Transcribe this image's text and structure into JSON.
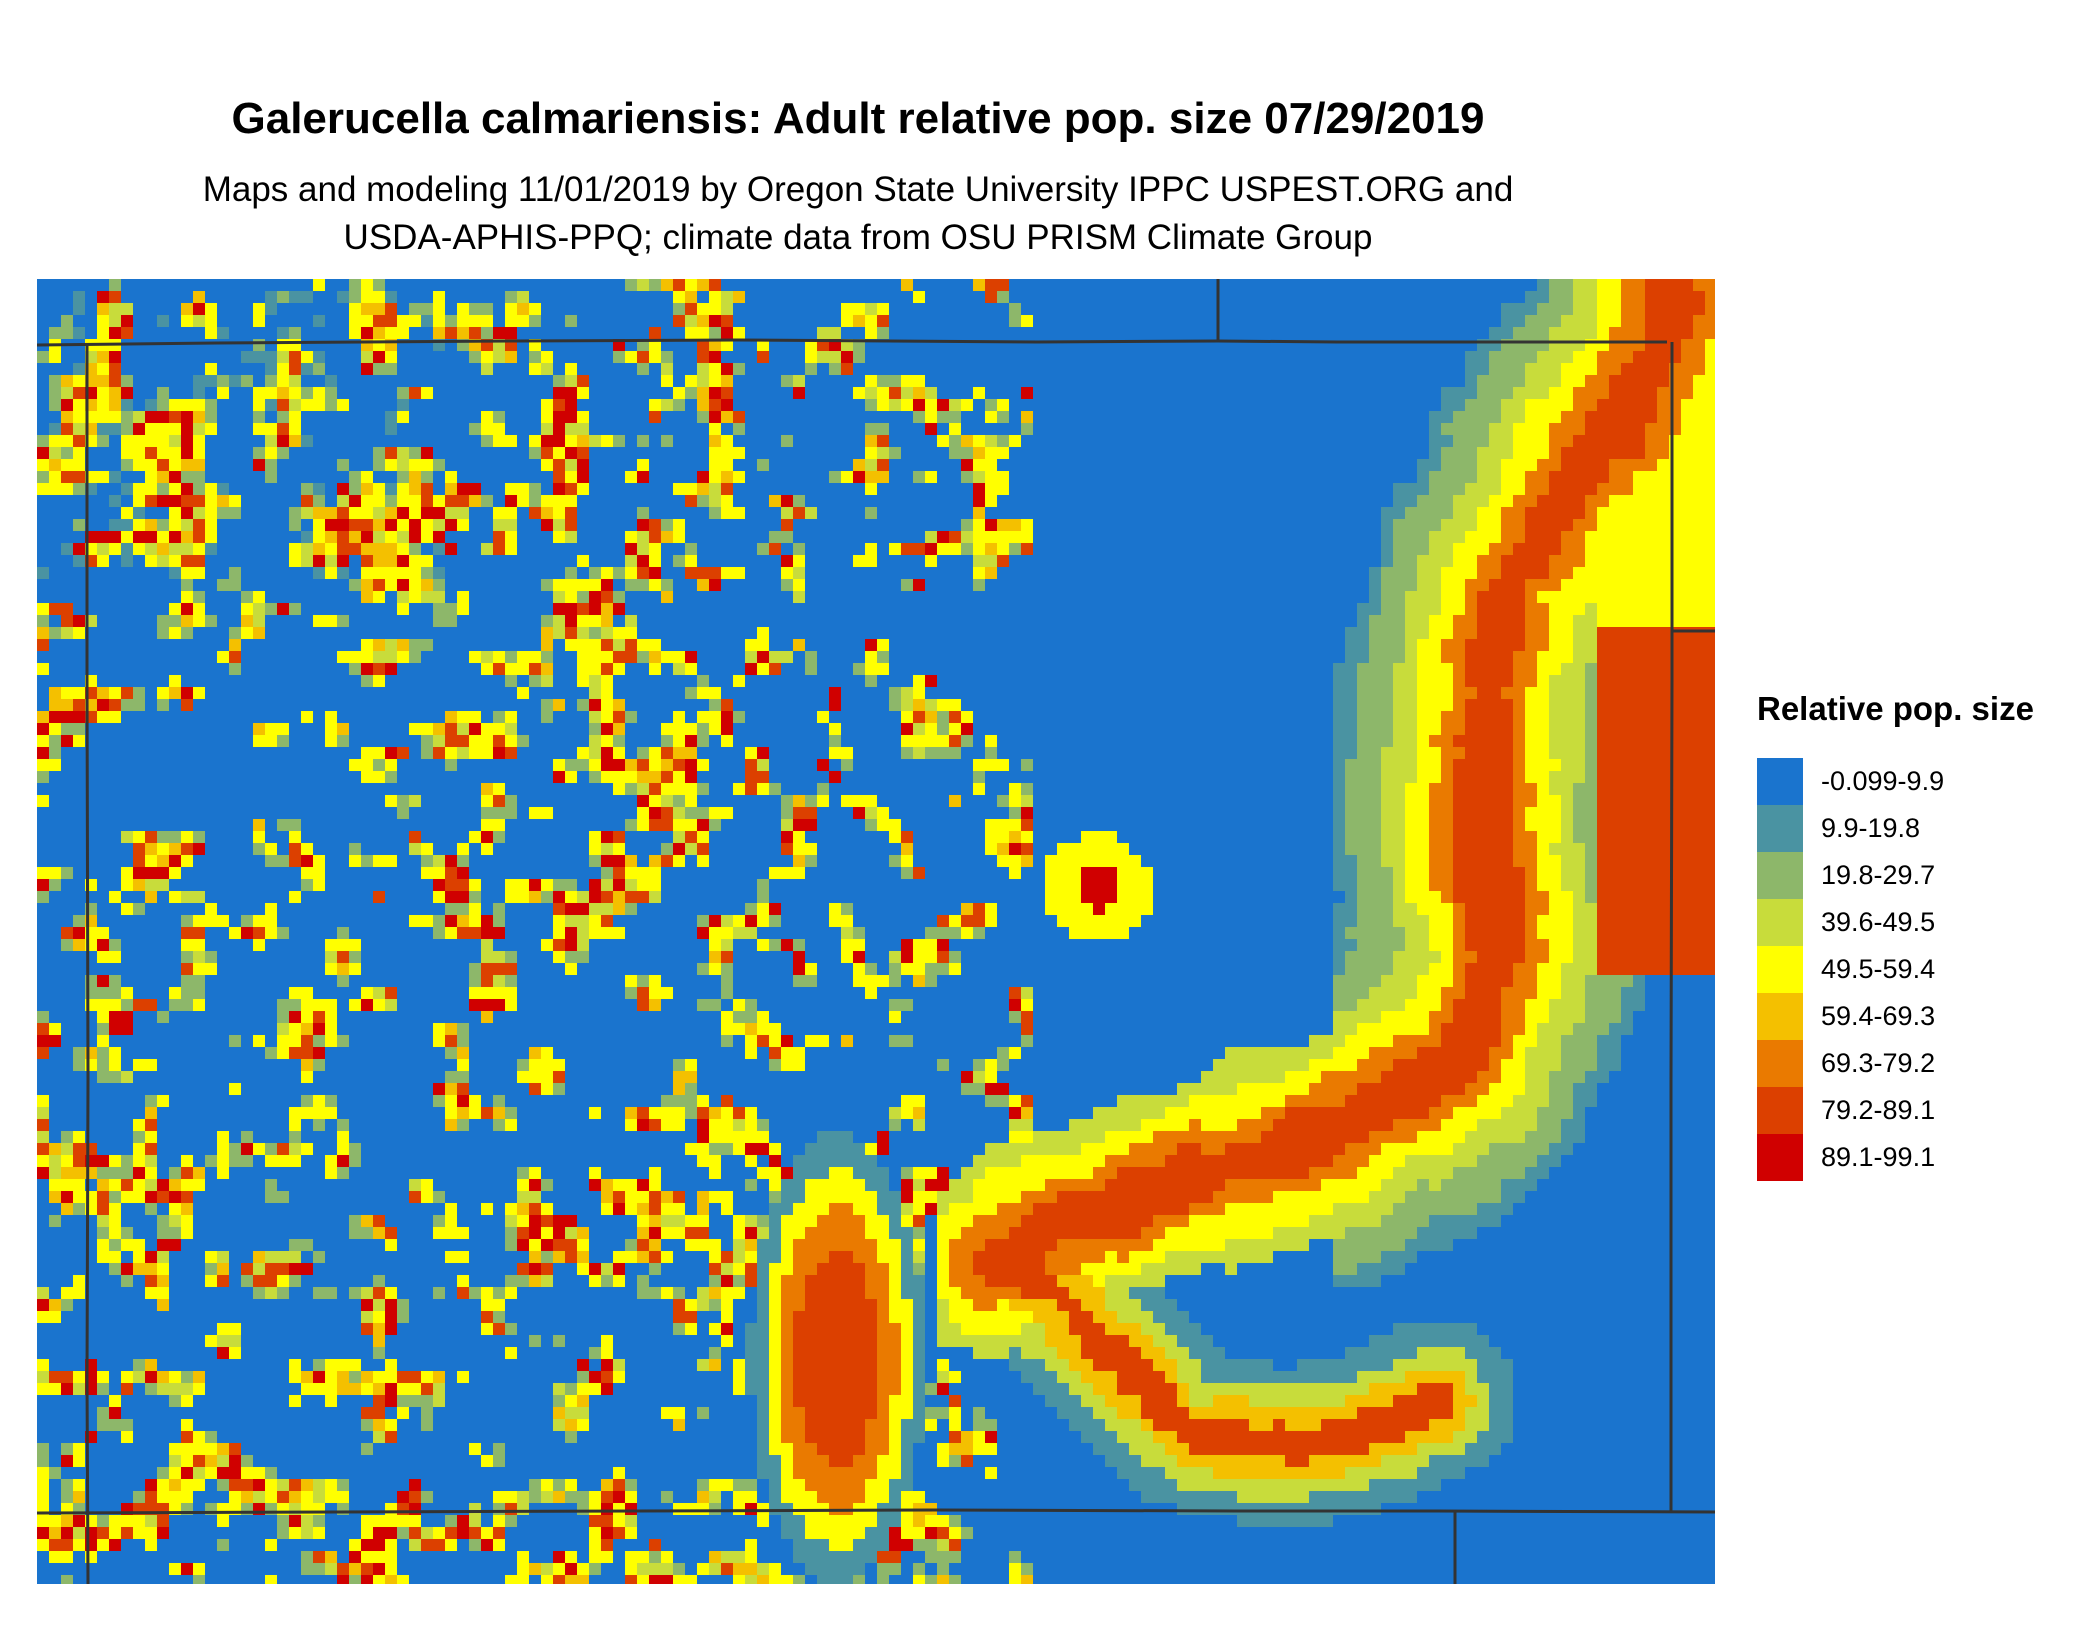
{
  "title": "Galerucella calmariensis: Adult relative pop. size 07/29/2019",
  "subtitle_line1": "Maps and modeling 11/01/2019 by Oregon State University IPPC USPEST.ORG and",
  "subtitle_line2": "USDA-APHIS-PPQ; climate data from OSU PRISM Climate Group",
  "legend": {
    "title": "Relative pop. size",
    "items": [
      {
        "label": "-0.099-9.9",
        "color": "#1a74ce"
      },
      {
        "label": "9.9-19.8",
        "color": "#4a93a2"
      },
      {
        "label": "19.8-29.7",
        "color": "#8db76a"
      },
      {
        "label": "39.6-49.5",
        "color": "#c8dc3b"
      },
      {
        "label": "49.5-59.4",
        "color": "#ffff00"
      },
      {
        "label": "59.4-69.3",
        "color": "#f4c000"
      },
      {
        "label": "69.3-79.2",
        "color": "#ea7a00"
      },
      {
        "label": "79.2-89.1",
        "color": "#dc4000"
      },
      {
        "label": "89.1-99.1",
        "color": "#d00000"
      }
    ]
  },
  "map": {
    "background_class": "-0.099-9.9",
    "border_color": "#333333"
  }
}
